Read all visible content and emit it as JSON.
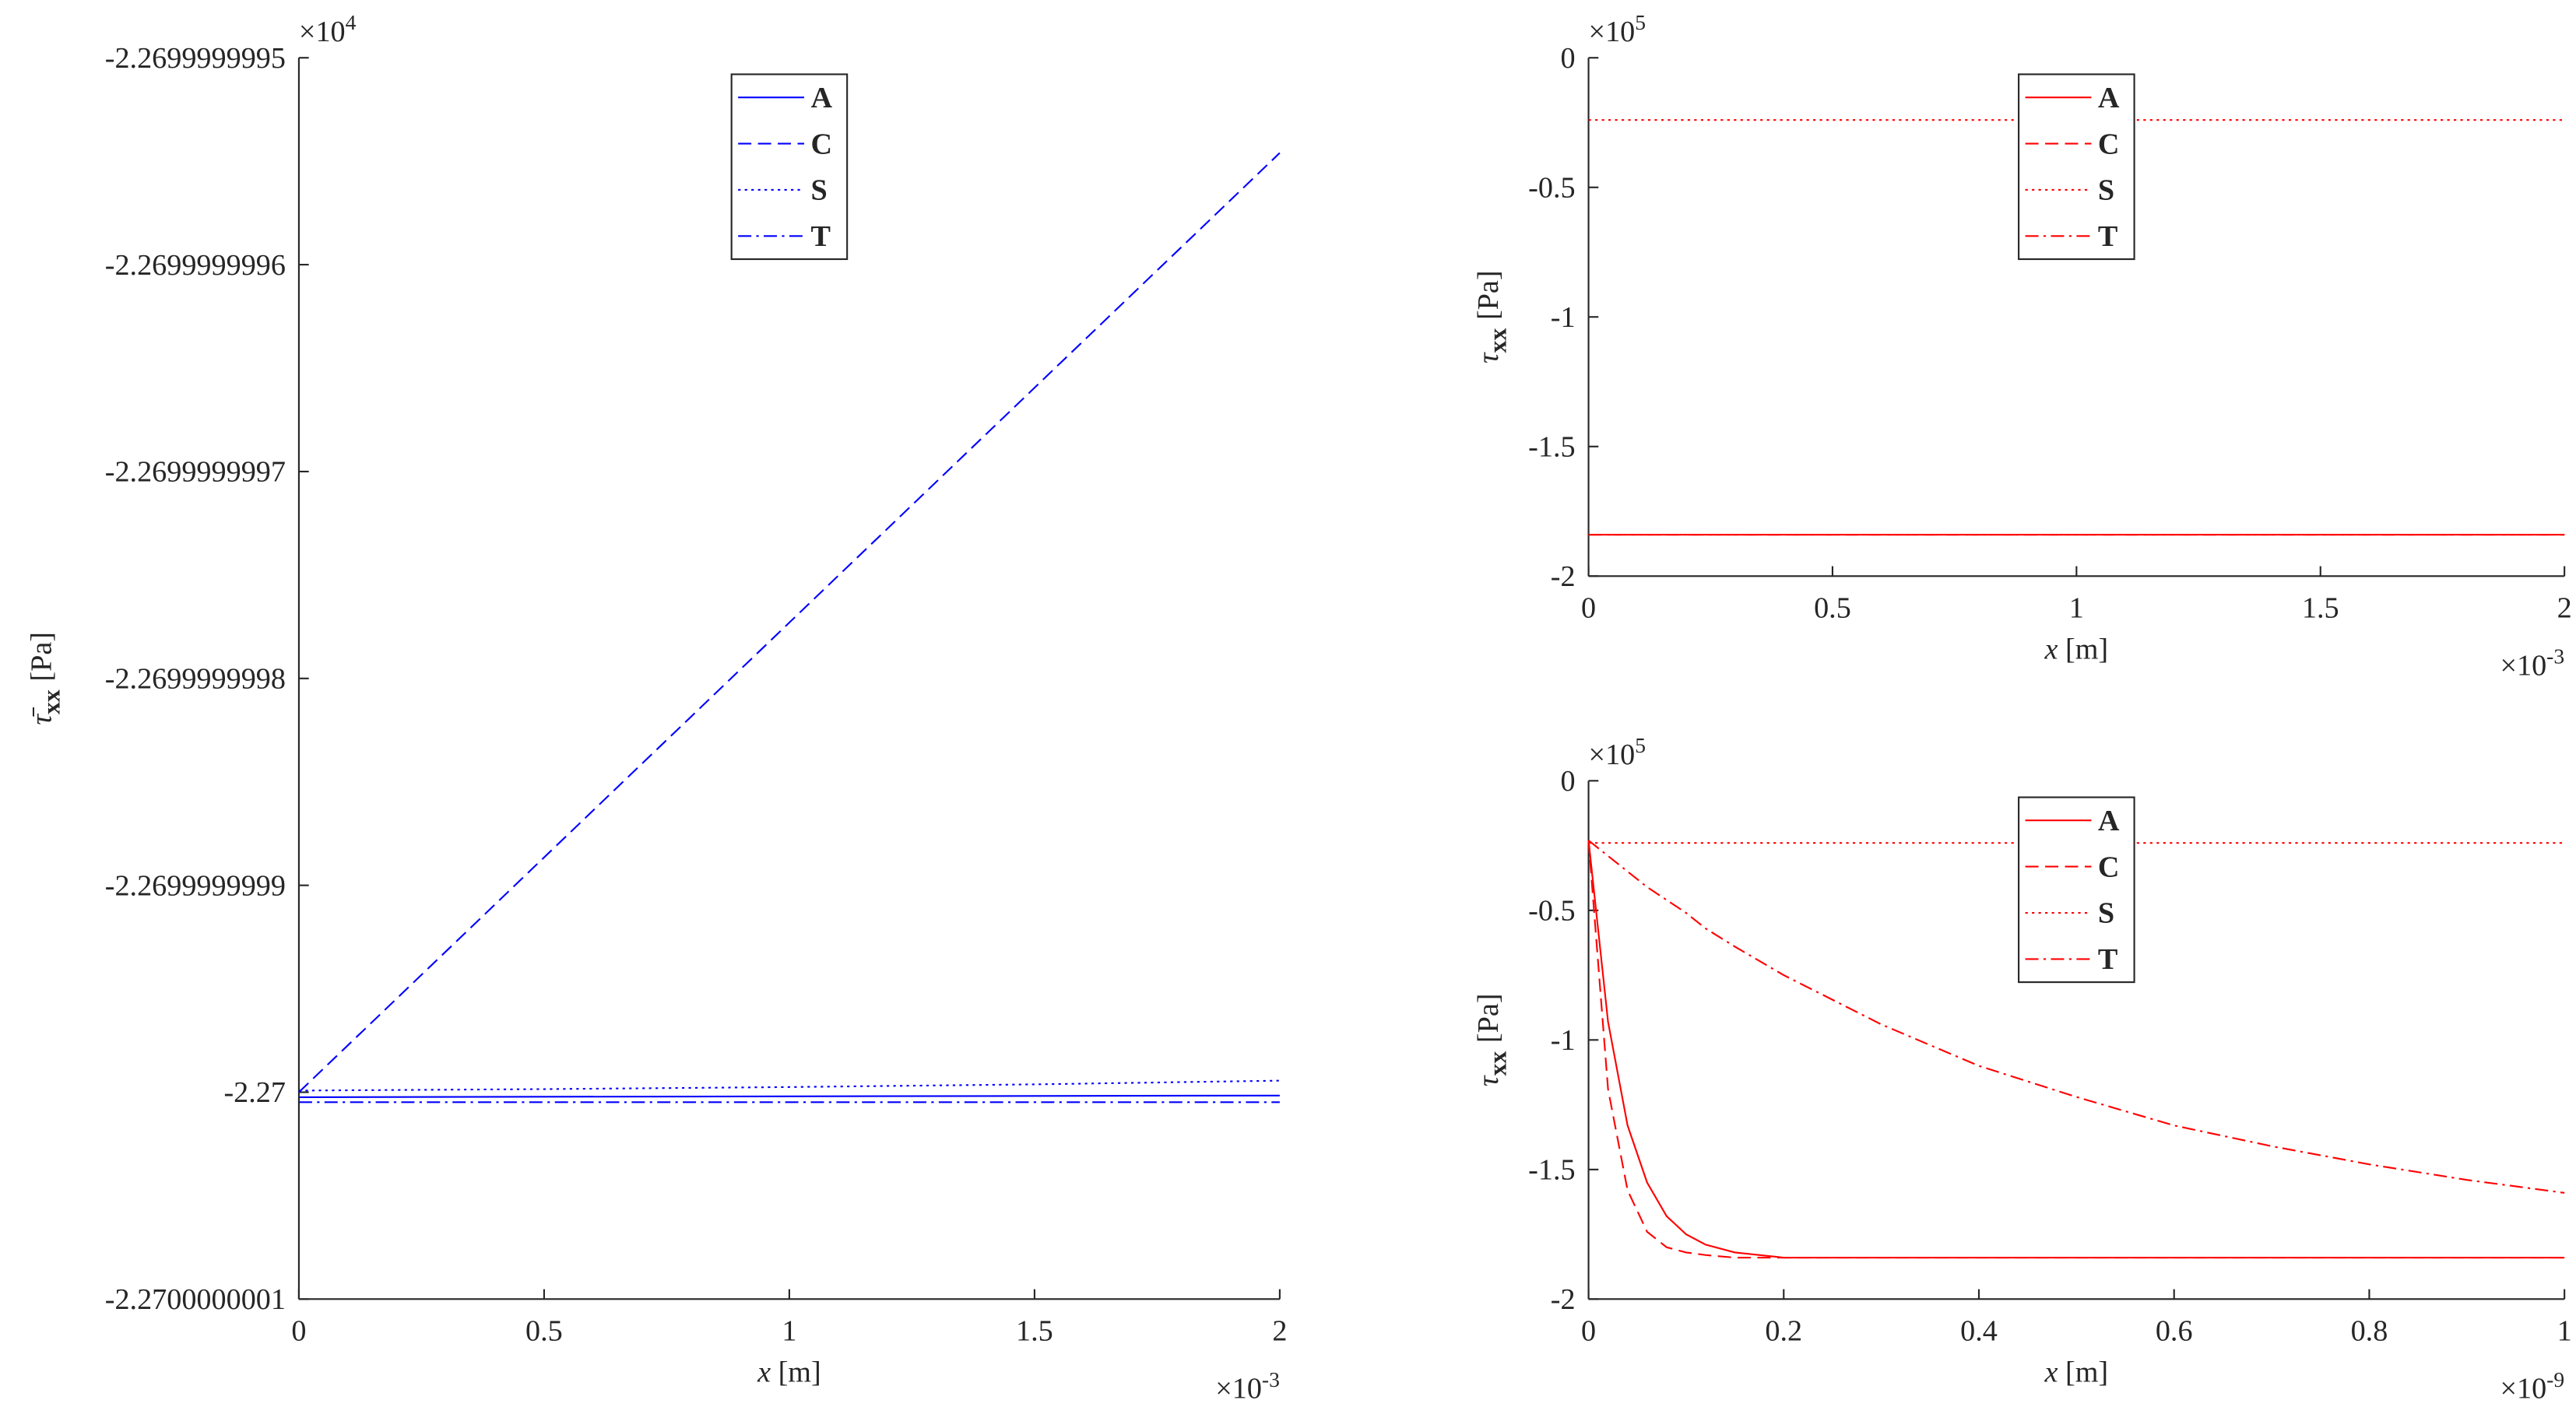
{
  "chart_data": [
    {
      "type": "line",
      "ylabel": {
        "symbol": "τ̄",
        "subscript": "xx",
        "unit": "[Pa]"
      },
      "xlabel": {
        "symbol": "x",
        "unit": "[m]"
      },
      "y_multiplier": {
        "base": "×10",
        "exponent": "4"
      },
      "x_multiplier": {
        "base": "×10",
        "exponent": "-3"
      },
      "x": [
        0,
        0.5,
        1,
        1.5,
        2
      ],
      "series": [
        {
          "name": "A",
          "color": "#0000ff",
          "dash": "solid",
          "values": [
            -2.2700000000024,
            -2.2700000000022,
            -2.270000000002,
            -2.2700000000018,
            -2.2700000000016
          ]
        },
        {
          "name": "C",
          "color": "#0000ff",
          "dash": "dashed",
          "values": [
            -2.27,
            -2.2699999998865,
            -2.269999999773,
            -2.2699999996595,
            -2.269999999546
          ]
        },
        {
          "name": "S",
          "color": "#0000ff",
          "dash": "dotted",
          "values": [
            -2.2699999999992,
            -2.2699999999985,
            -2.2699999999975,
            -2.2699999999962,
            -2.2699999999944
          ]
        },
        {
          "name": "T",
          "color": "#0000ff",
          "dash": "dashdot",
          "values": [
            -2.2700000000048,
            -2.2700000000048,
            -2.2700000000048,
            -2.2700000000048,
            -2.2700000000048
          ]
        }
      ],
      "xlim": [
        0,
        2
      ],
      "xticks": [
        0,
        0.5,
        1,
        1.5,
        2
      ],
      "ylim": [
        -2.2700000001,
        -2.2699999995
      ],
      "yticks": [
        -2.2700000001,
        -2.27,
        -2.2699999999,
        -2.2699999998,
        -2.2699999997,
        -2.2699999996,
        -2.2699999995
      ],
      "legend_loc": "north"
    },
    {
      "type": "line",
      "ylabel": {
        "symbol": "τ",
        "subscript": "xx",
        "unit": "[Pa]"
      },
      "xlabel": {
        "symbol": "x",
        "unit": "[m]"
      },
      "y_multiplier": {
        "base": "×10",
        "exponent": "5"
      },
      "x_multiplier": {
        "base": "×10",
        "exponent": "-3"
      },
      "x": [
        0,
        0.5,
        1,
        1.5,
        2
      ],
      "series": [
        {
          "name": "A",
          "color": "#ff0000",
          "dash": "solid",
          "values": [
            -1.84,
            -1.84,
            -1.84,
            -1.84,
            -1.84
          ]
        },
        {
          "name": "C",
          "color": "#ff0000",
          "dash": "dashed",
          "values": [
            -1.84,
            -1.84,
            -1.84,
            -1.84,
            -1.84
          ]
        },
        {
          "name": "S",
          "color": "#ff0000",
          "dash": "dotted",
          "values": [
            -0.24,
            -0.24,
            -0.24,
            -0.24,
            -0.24
          ]
        },
        {
          "name": "T",
          "color": "#ff0000",
          "dash": "dashdot",
          "values": [
            -1.84,
            -1.84,
            -1.84,
            -1.84,
            -1.84
          ]
        }
      ],
      "xlim": [
        0,
        2
      ],
      "xticks": [
        0,
        0.5,
        1,
        1.5,
        2
      ],
      "ylim": [
        -2,
        0
      ],
      "yticks": [
        -2,
        -1.5,
        -1,
        -0.5,
        0
      ],
      "legend_loc": "north"
    },
    {
      "type": "line",
      "ylabel": {
        "symbol": "τ",
        "subscript": "xx",
        "unit": "[Pa]"
      },
      "xlabel": {
        "symbol": "x",
        "unit": "[m]"
      },
      "y_multiplier": {
        "base": "×10",
        "exponent": "5"
      },
      "x_multiplier": {
        "base": "×10",
        "exponent": "-9"
      },
      "x": [
        0,
        0.02,
        0.04,
        0.06,
        0.08,
        0.1,
        0.12,
        0.15,
        0.2,
        0.3,
        0.4,
        0.5,
        0.6,
        0.7,
        0.8,
        0.9,
        1
      ],
      "series": [
        {
          "name": "A",
          "color": "#ff0000",
          "dash": "solid",
          "values": [
            -0.23,
            -0.93,
            -1.33,
            -1.55,
            -1.68,
            -1.75,
            -1.79,
            -1.82,
            -1.84,
            -1.84,
            -1.84,
            -1.84,
            -1.84,
            -1.84,
            -1.84,
            -1.84,
            -1.84
          ]
        },
        {
          "name": "C",
          "color": "#ff0000",
          "dash": "dashed",
          "values": [
            -0.23,
            -1.19,
            -1.58,
            -1.74,
            -1.8,
            -1.82,
            -1.83,
            -1.84,
            -1.84,
            -1.84,
            -1.84,
            -1.84,
            -1.84,
            -1.84,
            -1.84,
            -1.84,
            -1.84
          ]
        },
        {
          "name": "S",
          "color": "#ff0000",
          "dash": "dotted",
          "values": [
            -0.24,
            -0.24,
            -0.24,
            -0.24,
            -0.24,
            -0.24,
            -0.24,
            -0.24,
            -0.24,
            -0.24,
            -0.24,
            -0.24,
            -0.24,
            -0.24,
            -0.24,
            -0.24,
            -0.24
          ]
        },
        {
          "name": "T",
          "color": "#ff0000",
          "dash": "dashdot",
          "values": [
            -0.23,
            -0.29,
            -0.35,
            -0.41,
            -0.46,
            -0.51,
            -0.57,
            -0.64,
            -0.75,
            -0.94,
            -1.1,
            -1.22,
            -1.33,
            -1.41,
            -1.48,
            -1.54,
            -1.59
          ]
        }
      ],
      "xlim": [
        0,
        1
      ],
      "xticks": [
        0,
        0.2,
        0.4,
        0.6,
        0.8,
        1
      ],
      "ylim": [
        -2,
        0
      ],
      "yticks": [
        -2,
        -1.5,
        -1,
        -0.5,
        0
      ],
      "legend_loc": "north"
    }
  ]
}
